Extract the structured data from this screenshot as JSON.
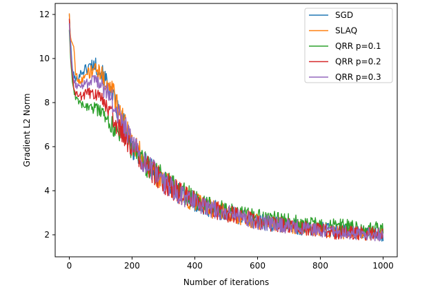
{
  "chart_data": {
    "type": "line",
    "title": "",
    "xlabel": "Number of iterations",
    "ylabel": "Gradient L2 Norm",
    "xlim": [
      -45,
      1045
    ],
    "ylim": [
      1,
      12.5
    ],
    "xticks": [
      0,
      200,
      400,
      600,
      800,
      1000
    ],
    "yticks": [
      2,
      4,
      6,
      8,
      10,
      12
    ],
    "grid": false,
    "legend_position": "top-right",
    "series": [
      {
        "name": "SGD",
        "color": "#1f77b4",
        "x": [
          0,
          5,
          10,
          20,
          30,
          40,
          50,
          60,
          70,
          80,
          90,
          100,
          120,
          140,
          160,
          180,
          200,
          220,
          250,
          300,
          350,
          400,
          450,
          500,
          550,
          600,
          650,
          700,
          750,
          800,
          850,
          900,
          950,
          1000
        ],
        "y": [
          12.0,
          10.5,
          9.5,
          9.0,
          9.2,
          9.4,
          9.5,
          9.6,
          9.7,
          9.75,
          9.6,
          9.4,
          8.9,
          8.2,
          7.4,
          6.8,
          6.0,
          5.6,
          5.1,
          4.4,
          3.9,
          3.5,
          3.2,
          3.0,
          2.8,
          2.6,
          2.5,
          2.4,
          2.3,
          2.25,
          2.2,
          2.1,
          2.05,
          2.0
        ]
      },
      {
        "name": "SLAQ",
        "color": "#ff7f0e",
        "x": [
          0,
          3,
          8,
          15,
          20,
          30,
          40,
          50,
          60,
          70,
          80,
          90,
          100,
          120,
          140,
          160,
          180,
          200,
          220,
          250,
          300,
          350,
          400,
          450,
          500,
          550,
          600,
          650,
          700,
          750,
          800,
          850,
          900,
          950,
          1000
        ],
        "y": [
          12.05,
          11.0,
          10.75,
          10.6,
          9.3,
          9.0,
          9.1,
          9.2,
          9.3,
          9.4,
          9.5,
          9.4,
          9.3,
          8.9,
          8.4,
          7.6,
          7.0,
          6.2,
          5.8,
          5.2,
          4.4,
          3.9,
          3.5,
          3.2,
          3.0,
          2.8,
          2.6,
          2.5,
          2.4,
          2.3,
          2.2,
          2.15,
          2.1,
          2.05,
          2.0
        ]
      },
      {
        "name": "QRR p=0.1",
        "color": "#2ca02c",
        "x": [
          0,
          5,
          10,
          15,
          20,
          30,
          40,
          60,
          80,
          100,
          120,
          140,
          160,
          180,
          200,
          220,
          250,
          300,
          350,
          400,
          450,
          500,
          550,
          600,
          650,
          700,
          750,
          800,
          850,
          900,
          950,
          1000
        ],
        "y": [
          11.3,
          9.8,
          9.0,
          8.5,
          8.2,
          8.0,
          7.95,
          7.85,
          7.75,
          7.5,
          7.2,
          6.9,
          6.6,
          6.3,
          5.9,
          5.6,
          5.1,
          4.5,
          4.0,
          3.6,
          3.3,
          3.1,
          2.9,
          2.8,
          2.7,
          2.6,
          2.5,
          2.45,
          2.4,
          2.35,
          2.3,
          2.3
        ]
      },
      {
        "name": "QRR p=0.2",
        "color": "#d62728",
        "x": [
          0,
          5,
          10,
          15,
          20,
          30,
          40,
          50,
          60,
          70,
          80,
          90,
          100,
          120,
          140,
          160,
          180,
          200,
          220,
          250,
          300,
          350,
          400,
          450,
          500,
          550,
          600,
          650,
          700,
          750,
          800,
          850,
          900,
          950,
          1000
        ],
        "y": [
          11.8,
          10.0,
          9.2,
          8.7,
          8.4,
          8.3,
          8.3,
          8.35,
          8.4,
          8.45,
          8.4,
          8.3,
          8.2,
          7.8,
          7.3,
          6.8,
          6.4,
          5.9,
          5.6,
          5.1,
          4.4,
          3.9,
          3.5,
          3.2,
          3.0,
          2.8,
          2.6,
          2.5,
          2.4,
          2.3,
          2.2,
          2.1,
          2.1,
          2.05,
          2.1
        ]
      },
      {
        "name": "QRR p=0.3",
        "color": "#9467bd",
        "x": [
          0,
          5,
          10,
          15,
          20,
          30,
          40,
          50,
          60,
          70,
          80,
          90,
          100,
          120,
          140,
          160,
          180,
          200,
          220,
          250,
          300,
          350,
          400,
          450,
          500,
          550,
          600,
          650,
          700,
          750,
          800,
          850,
          900,
          950,
          1000
        ],
        "y": [
          11.6,
          10.2,
          9.4,
          9.0,
          8.8,
          8.75,
          8.75,
          8.8,
          8.85,
          8.9,
          8.95,
          8.9,
          8.8,
          8.5,
          8.0,
          7.4,
          6.8,
          6.1,
          5.7,
          5.1,
          4.4,
          3.9,
          3.5,
          3.2,
          3.0,
          2.8,
          2.6,
          2.5,
          2.4,
          2.3,
          2.2,
          2.15,
          2.1,
          2.05,
          2.0
        ]
      }
    ]
  }
}
